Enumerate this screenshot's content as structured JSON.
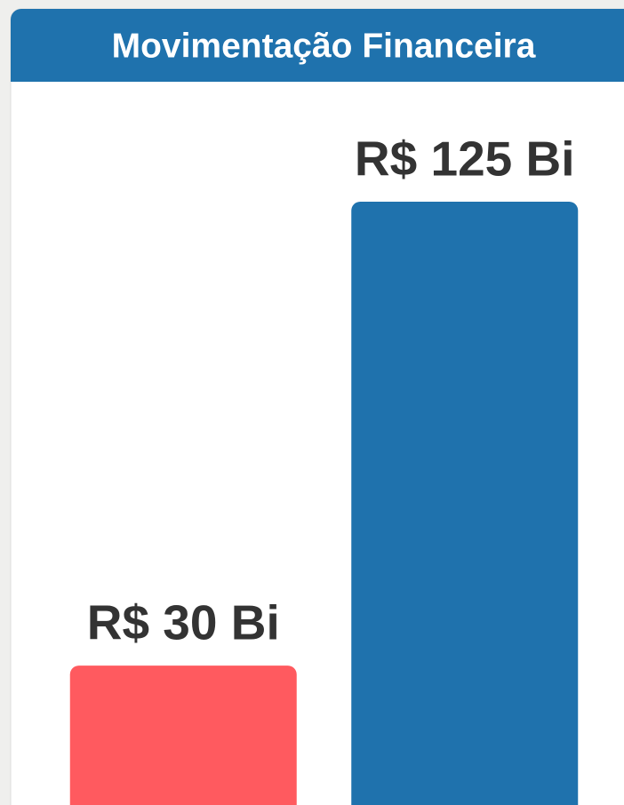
{
  "chart_data": {
    "type": "bar",
    "title": "Movimentação Financeira",
    "categories": [
      null,
      null
    ],
    "values": [
      30,
      125
    ],
    "value_labels": [
      "R$ 30 Bi",
      "R$ 125 Bi"
    ],
    "colors": [
      "#ff5a5f",
      "#1f72ad"
    ]
  }
}
